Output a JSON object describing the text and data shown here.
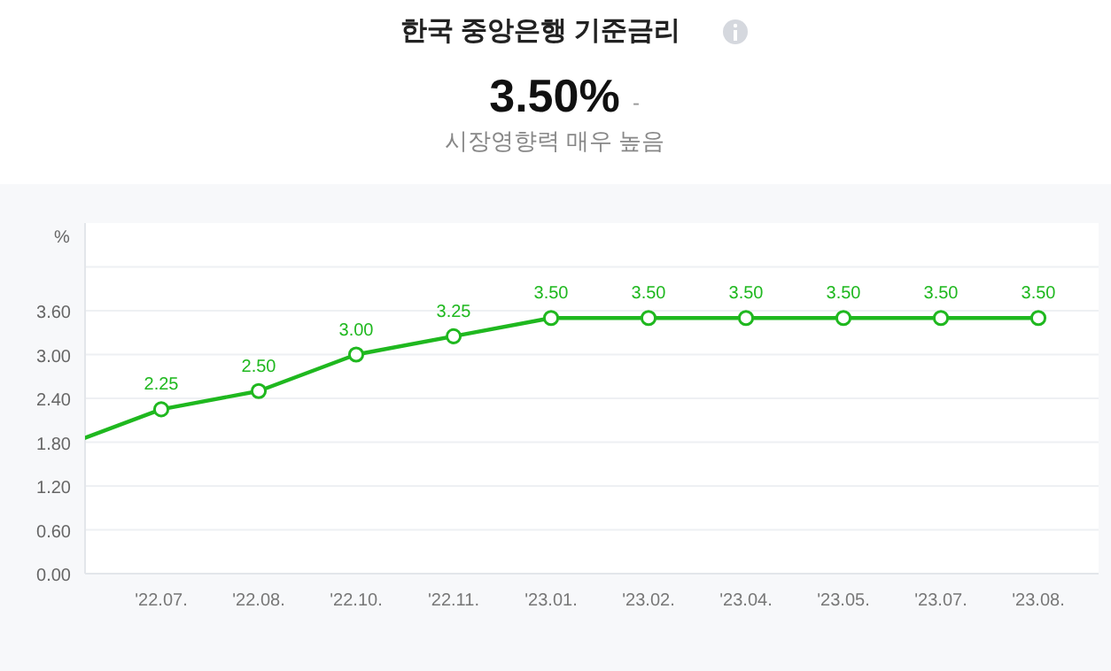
{
  "chart_data": {
    "type": "line",
    "title": "한국 중앙은행 기준금리",
    "ylabel": "%",
    "annotations": [
      "3.50%",
      "-",
      "시장영향력 매우 높음"
    ],
    "categories": [
      null,
      "'22.07.",
      "'22.08.",
      "'22.10.",
      "'22.11.",
      "'23.01.",
      "'23.02.",
      "'23.04.",
      "'23.05.",
      "'23.07.",
      "'23.08."
    ],
    "series": [
      {
        "color": "#1fb81f",
        "values": [
          1.75,
          2.25,
          2.5,
          3.0,
          3.25,
          3.5,
          3.5,
          3.5,
          3.5,
          3.5,
          3.5
        ],
        "value_labels": [
          null,
          "2.25",
          "2.50",
          "3.00",
          "3.25",
          "3.50",
          "3.50",
          "3.50",
          "3.50",
          "3.50",
          "3.50"
        ]
      }
    ],
    "ylim": [
      0,
      4.8
    ],
    "yticks": [
      {
        "value": 0,
        "label": "0.00"
      },
      {
        "value": 0.6,
        "label": "0.60"
      },
      {
        "value": 1.2,
        "label": "1.20"
      },
      {
        "value": 1.8,
        "label": "1.80"
      },
      {
        "value": 2.4,
        "label": "2.40"
      },
      {
        "value": 3.0,
        "label": "3.00"
      },
      {
        "value": 3.6,
        "label": "3.60"
      },
      {
        "value": 4.2,
        "label": null
      }
    ],
    "grid": "y",
    "marker": "circle",
    "line_style": "solid"
  }
}
